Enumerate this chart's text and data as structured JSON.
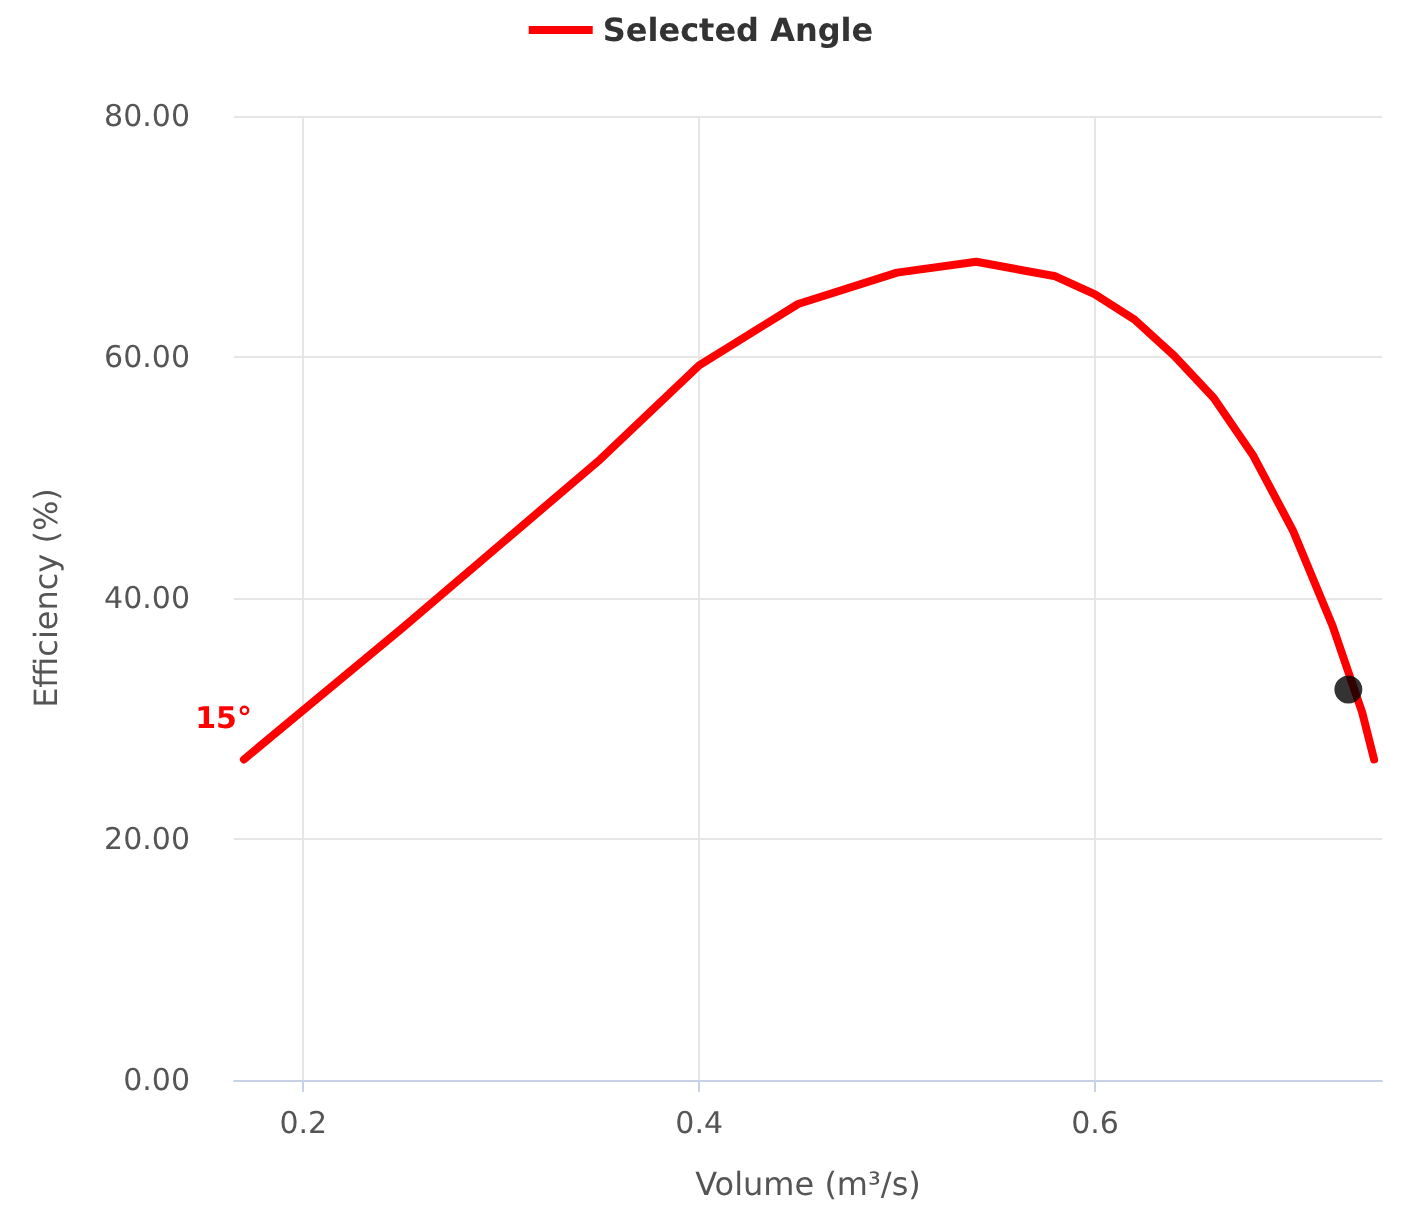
{
  "chart_data": {
    "type": "line",
    "xlabel": "Volume (m³/s)",
    "ylabel": "Efficiency (%)",
    "xlim": [
      0.165,
      0.745
    ],
    "xticks": [
      0.2,
      0.4,
      0.6
    ],
    "ylim": [
      0,
      80
    ],
    "yticks": [
      {
        "value": 0,
        "label": "0.00"
      },
      {
        "value": 20,
        "label": "20.00"
      },
      {
        "value": 40,
        "label": "40.00"
      },
      {
        "value": 60,
        "label": "60.00"
      },
      {
        "value": 80,
        "label": "80.00"
      }
    ],
    "grid": true,
    "legend": "top",
    "annotations": [
      {
        "text": "15°",
        "x": 0.17,
        "y": 26.6
      }
    ],
    "series": [
      {
        "name": "Selected Angle",
        "color": "#ff0000",
        "marker": "none",
        "x": [
          0.17,
          0.2,
          0.25,
          0.3,
          0.35,
          0.4,
          0.45,
          0.5,
          0.54,
          0.58,
          0.6,
          0.62,
          0.64,
          0.66,
          0.68,
          0.7,
          0.72,
          0.735,
          0.741
        ],
        "values": [
          26.6,
          30.7,
          37.5,
          44.5,
          51.5,
          59.3,
          64.4,
          67.0,
          67.9,
          66.7,
          65.2,
          63.1,
          60.1,
          56.6,
          51.8,
          45.6,
          37.7,
          30.5,
          26.6
        ]
      },
      {
        "type": "scatter",
        "color": "#000000",
        "marker": "circle",
        "x": [
          0.728
        ],
        "values": [
          32.4
        ]
      }
    ]
  }
}
